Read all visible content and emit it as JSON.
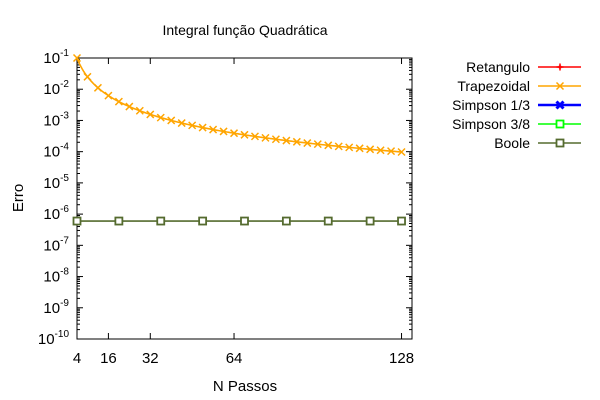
{
  "chart_data": {
    "type": "line",
    "title": "Integral função Quadrática",
    "xlabel": "N Passos",
    "ylabel": "Erro",
    "xlim": [
      4,
      132
    ],
    "ylim_log10": [
      -10,
      -1
    ],
    "y_scale": "log",
    "grid": false,
    "legend_placement": "right, outside",
    "x_ticks": [
      4,
      16,
      32,
      64,
      128
    ],
    "y_ticks": [
      {
        "base": "10",
        "exp": "-1"
      },
      {
        "base": "10",
        "exp": "-2"
      },
      {
        "base": "10",
        "exp": "-3"
      },
      {
        "base": "10",
        "exp": "-4"
      },
      {
        "base": "10",
        "exp": "-5"
      },
      {
        "base": "10",
        "exp": "-6"
      },
      {
        "base": "10",
        "exp": "-7"
      },
      {
        "base": "10",
        "exp": "-8"
      },
      {
        "base": "10",
        "exp": "-9"
      },
      {
        "base": "10",
        "exp": "-10"
      }
    ],
    "series": [
      {
        "name": "Retangulo",
        "color": "#ff0000",
        "marker": "plus-dot",
        "x": [],
        "y": []
      },
      {
        "name": "Trapezoidal",
        "color": "#ffa500",
        "marker": "x",
        "x": [
          4,
          8,
          12,
          16,
          20,
          24,
          28,
          32,
          36,
          40,
          44,
          48,
          52,
          56,
          60,
          64,
          68,
          72,
          76,
          80,
          84,
          88,
          92,
          96,
          100,
          104,
          108,
          112,
          116,
          120,
          124,
          128
        ],
        "y": [
          0.1,
          0.025,
          0.0111,
          0.00625,
          0.004,
          0.00278,
          0.00204,
          0.00156,
          0.00123,
          0.001,
          0.000826,
          0.000694,
          0.000592,
          0.00051,
          0.000444,
          0.000391,
          0.000346,
          0.000309,
          0.000277,
          0.00025,
          0.000227,
          0.000207,
          0.000189,
          0.000174,
          0.00016,
          0.000148,
          0.000137,
          0.000128,
          0.000119,
          0.000111,
          0.000104,
          9.77e-05
        ]
      },
      {
        "name": "Simpson 1/3",
        "color": "#0000ff",
        "marker": "filled-x",
        "x": [],
        "y": []
      },
      {
        "name": "Simpson 3/8",
        "color": "#00ff00",
        "marker": "open-square",
        "x": [],
        "y": []
      },
      {
        "name": "Boole",
        "color": "#556b2f",
        "marker": "open-square",
        "x": [
          4,
          20,
          36,
          52,
          68,
          84,
          100,
          116,
          128
        ],
        "y": [
          6e-07,
          6e-07,
          6e-07,
          6e-07,
          6e-07,
          6e-07,
          6e-07,
          6e-07,
          6e-07
        ]
      }
    ]
  }
}
